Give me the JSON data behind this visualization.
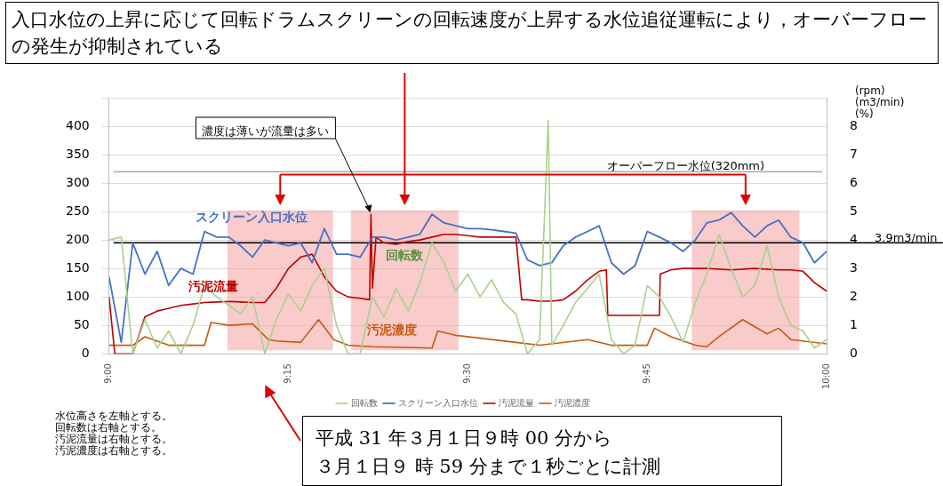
{
  "chart_data": {
    "type": "line",
    "title": "入口水位の上昇に応じて回転ドラムスクリーンの回転速度が上昇する水位追従運転により，オーバーフローの発生が抑制されている",
    "y2label": "(rpm)\n(m3/min)\n(%)",
    "x": [
      9,
      9.017,
      9.033,
      9.05,
      9.067,
      9.083,
      9.1,
      9.117,
      9.133,
      9.15,
      9.167,
      9.183,
      9.2,
      9.217,
      9.233,
      9.25,
      9.267,
      9.283,
      9.3,
      9.317,
      9.333,
      9.35,
      9.367,
      9.383,
      9.4,
      9.417,
      9.433,
      9.45,
      9.467,
      9.483,
      9.5,
      9.517,
      9.533,
      9.55,
      9.567,
      9.583,
      9.6,
      9.617,
      9.633,
      9.65,
      9.667,
      9.683,
      9.7,
      9.717,
      9.733,
      9.75,
      9.767,
      9.783,
      9.8,
      9.817,
      9.833,
      9.85,
      9.867,
      9.883,
      9.9,
      9.917,
      9.933,
      9.95,
      9.967,
      9.983,
      10
    ],
    "xlim": [
      9,
      10
    ],
    "xticks": [
      {
        "value": 9,
        "label": "9:00"
      },
      {
        "value": 9.25,
        "label": "9:15"
      },
      {
        "value": 9.5,
        "label": "9:30"
      },
      {
        "value": 9.75,
        "label": "9:45"
      },
      {
        "value": 10,
        "label": "10:00"
      }
    ],
    "ylim": [
      0,
      450
    ],
    "yticks": [
      0,
      50,
      100,
      150,
      200,
      250,
      300,
      350,
      400,
      {
        "value": 450,
        "label": null
      }
    ],
    "y2lim": [
      0,
      9
    ],
    "y2ticks": [
      0,
      1,
      2,
      3,
      4,
      5,
      6,
      7,
      8
    ],
    "grid": "y",
    "legend": "bottom",
    "marker": "none",
    "line_style": "solid",
    "series": [
      {
        "name": "回転数",
        "color": "#a9d18e",
        "axis": "y2",
        "x": [
          9,
          9.017,
          9.033,
          9.05,
          9.067,
          9.083,
          9.1,
          9.117,
          9.133,
          9.15,
          9.167,
          9.183,
          9.2,
          9.217,
          9.233,
          9.25,
          9.267,
          9.283,
          9.3,
          9.317,
          9.333,
          9.35,
          9.367,
          9.383,
          9.4,
          9.417,
          9.433,
          9.45,
          9.467,
          9.483,
          9.5,
          9.517,
          9.533,
          9.55,
          9.567,
          9.583,
          9.6,
          9.612,
          9.617,
          9.633,
          9.65,
          9.667,
          9.683,
          9.7,
          9.717,
          9.733,
          9.75,
          9.767,
          9.783,
          9.8,
          9.817,
          9.833,
          9.85,
          9.867,
          9.883,
          9.9,
          9.917,
          9.933,
          9.95,
          9.967,
          9.983,
          10
        ],
        "values": [
          4,
          4.1,
          0,
          1.2,
          0.2,
          0.8,
          0,
          1,
          2.4,
          2,
          1.7,
          1.4,
          2,
          0,
          1.2,
          2.1,
          1.5,
          2.4,
          3,
          1,
          0,
          0,
          2,
          1.3,
          2.3,
          1.5,
          2.5,
          3.9,
          3.2,
          2.2,
          2.8,
          2,
          2.6,
          1.8,
          1.4,
          0,
          0.5,
          8.2,
          0.3,
          1,
          1.8,
          2.3,
          2.8,
          0.5,
          0,
          0.3,
          2.4,
          2,
          1.3,
          0.4,
          1.8,
          2.8,
          4.2,
          3,
          2,
          2.4,
          3.8,
          2,
          1,
          0.8,
          0.2,
          0.5
        ]
      },
      {
        "name": "スクリーン入口水位",
        "color": "#4472c4",
        "values": [
          135,
          20,
          195,
          140,
          180,
          120,
          150,
          140,
          215,
          205,
          205,
          190,
          170,
          200,
          195,
          190,
          195,
          160,
          220,
          175,
          175,
          170,
          205,
          205,
          200,
          205,
          210,
          245,
          230,
          225,
          220,
          220,
          218,
          215,
          212,
          165,
          155,
          160,
          190,
          205,
          215,
          225,
          160,
          140,
          155,
          215,
          205,
          195,
          180,
          200,
          230,
          235,
          248,
          225,
          205,
          225,
          235,
          205,
          195,
          160,
          180
        ]
      },
      {
        "name": "汚泥流量",
        "color": "#c00000",
        "axis": "y2",
        "x": [
          9,
          9.008,
          9.033,
          9.05,
          9.067,
          9.083,
          9.1,
          9.117,
          9.133,
          9.15,
          9.167,
          9.183,
          9.2,
          9.217,
          9.233,
          9.25,
          9.267,
          9.283,
          9.3,
          9.317,
          9.333,
          9.35,
          9.363,
          9.365,
          9.367,
          9.372,
          9.383,
          9.4,
          9.417,
          9.433,
          9.45,
          9.467,
          9.483,
          9.5,
          9.517,
          9.533,
          9.55,
          9.567,
          9.575,
          9.583,
          9.6,
          9.617,
          9.633,
          9.65,
          9.667,
          9.683,
          9.693,
          9.695,
          9.7,
          9.717,
          9.733,
          9.75,
          9.767,
          9.768,
          9.783,
          9.8,
          9.833,
          9.867,
          9.9,
          9.933,
          9.95,
          9.967,
          9.983,
          10
        ],
        "values": [
          2,
          0,
          0,
          1.3,
          1.5,
          1.6,
          1.7,
          1.75,
          1.8,
          1.82,
          1.84,
          1.82,
          1.8,
          1.8,
          2.3,
          3,
          3.4,
          3.5,
          2.7,
          2.2,
          2,
          1.95,
          1.9,
          4.9,
          2.3,
          4.1,
          3.9,
          3.85,
          3.95,
          4,
          4.1,
          4.2,
          4.2,
          4.15,
          4.1,
          4.1,
          4.1,
          4.1,
          1.9,
          1.9,
          1.85,
          1.85,
          1.9,
          2.2,
          2.6,
          2.9,
          2.95,
          1.35,
          1.35,
          1.35,
          1.35,
          1.35,
          1.35,
          2.8,
          2.95,
          3,
          3,
          2.95,
          3,
          2.95,
          2.95,
          2.9,
          2.5,
          2.2
        ]
      },
      {
        "name": "汚泥濃度",
        "color": "#c55a11",
        "axis": "y2",
        "x": [
          9,
          9.017,
          9.033,
          9.05,
          9.083,
          9.133,
          9.142,
          9.167,
          9.2,
          9.222,
          9.233,
          9.267,
          9.292,
          9.313,
          9.333,
          9.367,
          9.45,
          9.458,
          9.483,
          9.567,
          9.6,
          9.667,
          9.7,
          9.75,
          9.76,
          9.783,
          9.817,
          9.833,
          9.85,
          9.883,
          9.917,
          9.933,
          9.95,
          10
        ],
        "values": [
          0.3,
          0.3,
          0.3,
          0.6,
          0.3,
          0.3,
          1.1,
          1,
          1.05,
          0.5,
          0.45,
          0.4,
          1.2,
          0.5,
          0.3,
          0.25,
          0.2,
          0.8,
          0.65,
          0.4,
          0.3,
          0.5,
          0.3,
          0.3,
          0.9,
          0.6,
          0.3,
          0.25,
          0.6,
          1.2,
          0.7,
          0.9,
          0.5,
          0.35
        ]
      }
    ],
    "ref_lines": [
      {
        "axis": "y",
        "value": 320,
        "label": "オーバーフロー水位(320mm)",
        "color": "#808080"
      },
      {
        "axis": "y2",
        "value": 3.9,
        "label": "3.9m3/min",
        "color": "#000000"
      }
    ],
    "bands": [
      {
        "axis": "x",
        "from": 9.165,
        "to": 9.312,
        "color": "#f4a0a0"
      },
      {
        "axis": "x",
        "from": 9.337,
        "to": 9.487,
        "color": "#f4a0a0"
      },
      {
        "axis": "x",
        "from": 9.812,
        "to": 9.962,
        "color": "#f4a0a0"
      }
    ],
    "annotations": [
      {
        "text": "濃度は薄いが流量は多い",
        "x": 9.365,
        "y": 245
      },
      "水位高さを左軸とする。",
      "回転数は右軸とする。",
      "汚泥流量は右軸とする。",
      "汚泥濃度は右軸とする。",
      "平成 31 年３月１日９時 00 分から",
      "３月１日９ 時 59 分まで１秒ごとに計測"
    ]
  }
}
